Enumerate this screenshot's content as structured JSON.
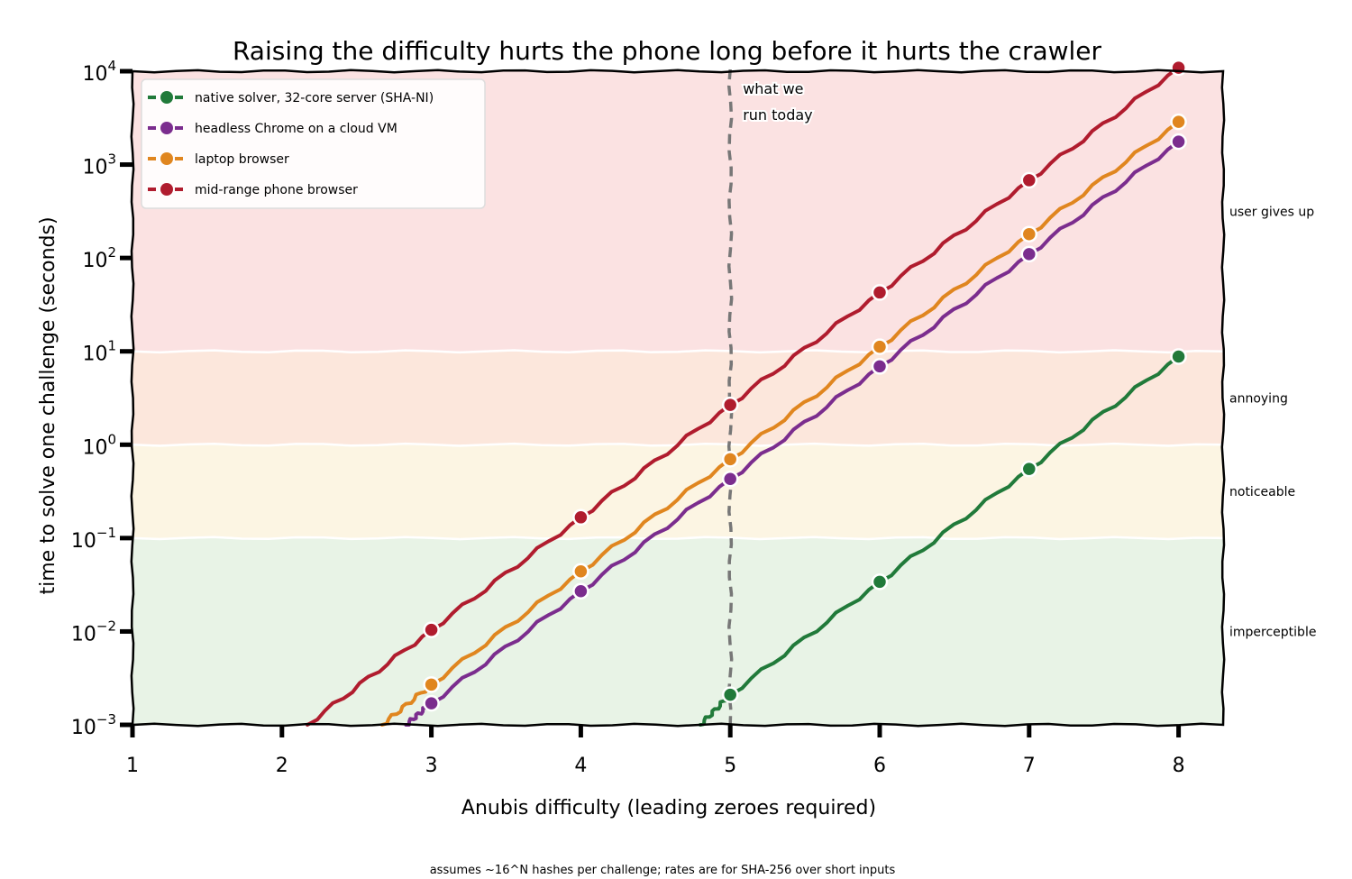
{
  "chart_data": {
    "type": "line",
    "title": "Raising the difficulty hurts the phone long before it hurts the crawler",
    "xlabel": "Anubis difficulty (leading zeroes required)",
    "ylabel": "time to solve one challenge (seconds)",
    "footnote": "assumes ~16^N hashes per challenge; rates are for SHA-256 over short inputs",
    "x_ticks": [
      1,
      2,
      3,
      4,
      5,
      6,
      7,
      8
    ],
    "xlim": [
      1,
      8.3
    ],
    "y_scale": "log",
    "ylim": [
      0.001,
      10000
    ],
    "y_ticks": [
      {
        "base": "10",
        "exp": "−3"
      },
      {
        "base": "10",
        "exp": "−2"
      },
      {
        "base": "10",
        "exp": "−1"
      },
      {
        "base": "10",
        "exp": "0"
      },
      {
        "base": "10",
        "exp": "1"
      },
      {
        "base": "10",
        "exp": "2"
      },
      {
        "base": "10",
        "exp": "3"
      },
      {
        "base": "10",
        "exp": "4"
      }
    ],
    "y_tick_values": [
      0.001,
      0.01,
      0.1,
      1,
      10,
      100,
      1000,
      10000
    ],
    "bands": [
      {
        "label": "imperceptible",
        "from": 0.001,
        "to": 0.1,
        "color": "#e8f3e6"
      },
      {
        "label": "noticeable",
        "from": 0.1,
        "to": 1,
        "color": "#fcf5e3"
      },
      {
        "label": "annoying",
        "from": 1,
        "to": 10,
        "color": "#fce7dc"
      },
      {
        "label": "user gives up",
        "from": 10,
        "to": 10000,
        "color": "#fbe2e2"
      }
    ],
    "legend_position": "top-left",
    "series": [
      {
        "name": "native solver, 32-core server (SHA-NI)",
        "color": "#217a3a",
        "x": [
          5,
          6,
          7,
          8
        ],
        "values": [
          0.0021,
          0.034,
          0.55,
          8.8
        ]
      },
      {
        "name": "headless Chrome on a cloud VM",
        "color": "#7b2d8e",
        "x": [
          3,
          4,
          5,
          6,
          7,
          8
        ],
        "values": [
          0.0017,
          0.027,
          0.43,
          6.9,
          110,
          1760
        ]
      },
      {
        "name": "laptop browser",
        "color": "#e0861f",
        "x": [
          3,
          4,
          5,
          6,
          7,
          8
        ],
        "values": [
          0.0027,
          0.044,
          0.7,
          11.2,
          180,
          2870
        ]
      },
      {
        "name": "mid-range phone browser",
        "color": "#b01c2e",
        "x": [
          3,
          4,
          5,
          6,
          7,
          8
        ],
        "values": [
          0.0104,
          0.167,
          2.67,
          42.7,
          680,
          10900
        ]
      }
    ],
    "line_starts": [
      {
        "series": 0,
        "x": 4.8,
        "y": 0.001
      },
      {
        "series": 1,
        "x": 2.83,
        "y": 0.001
      },
      {
        "series": 2,
        "x": 2.67,
        "y": 0.001
      },
      {
        "series": 3,
        "x": 2.17,
        "y": 0.001
      }
    ],
    "vline": {
      "x": 5,
      "label_line1": "what we",
      "label_line2": "run today",
      "color": "#777777"
    }
  }
}
